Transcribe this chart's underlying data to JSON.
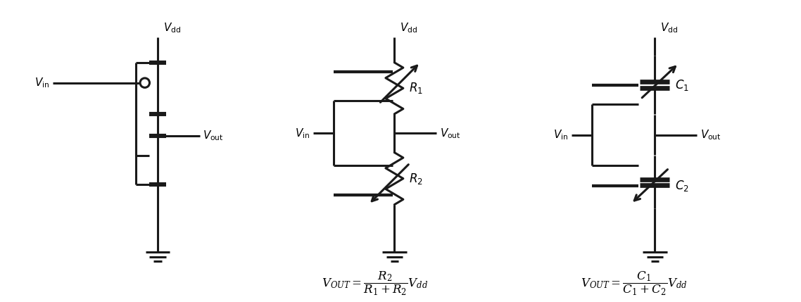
{
  "bg_color": "#ffffff",
  "line_color": "#1a1a1a",
  "lw": 2.2,
  "fig_width": 11.38,
  "fig_height": 4.29,
  "formula2": "$V_{OUT} = \\dfrac{R_2}{R_1 + R_2}V_{dd}$",
  "formula3": "$V_{OUT} = \\dfrac{C_1}{C_1 + C_2}V_{dd}$"
}
